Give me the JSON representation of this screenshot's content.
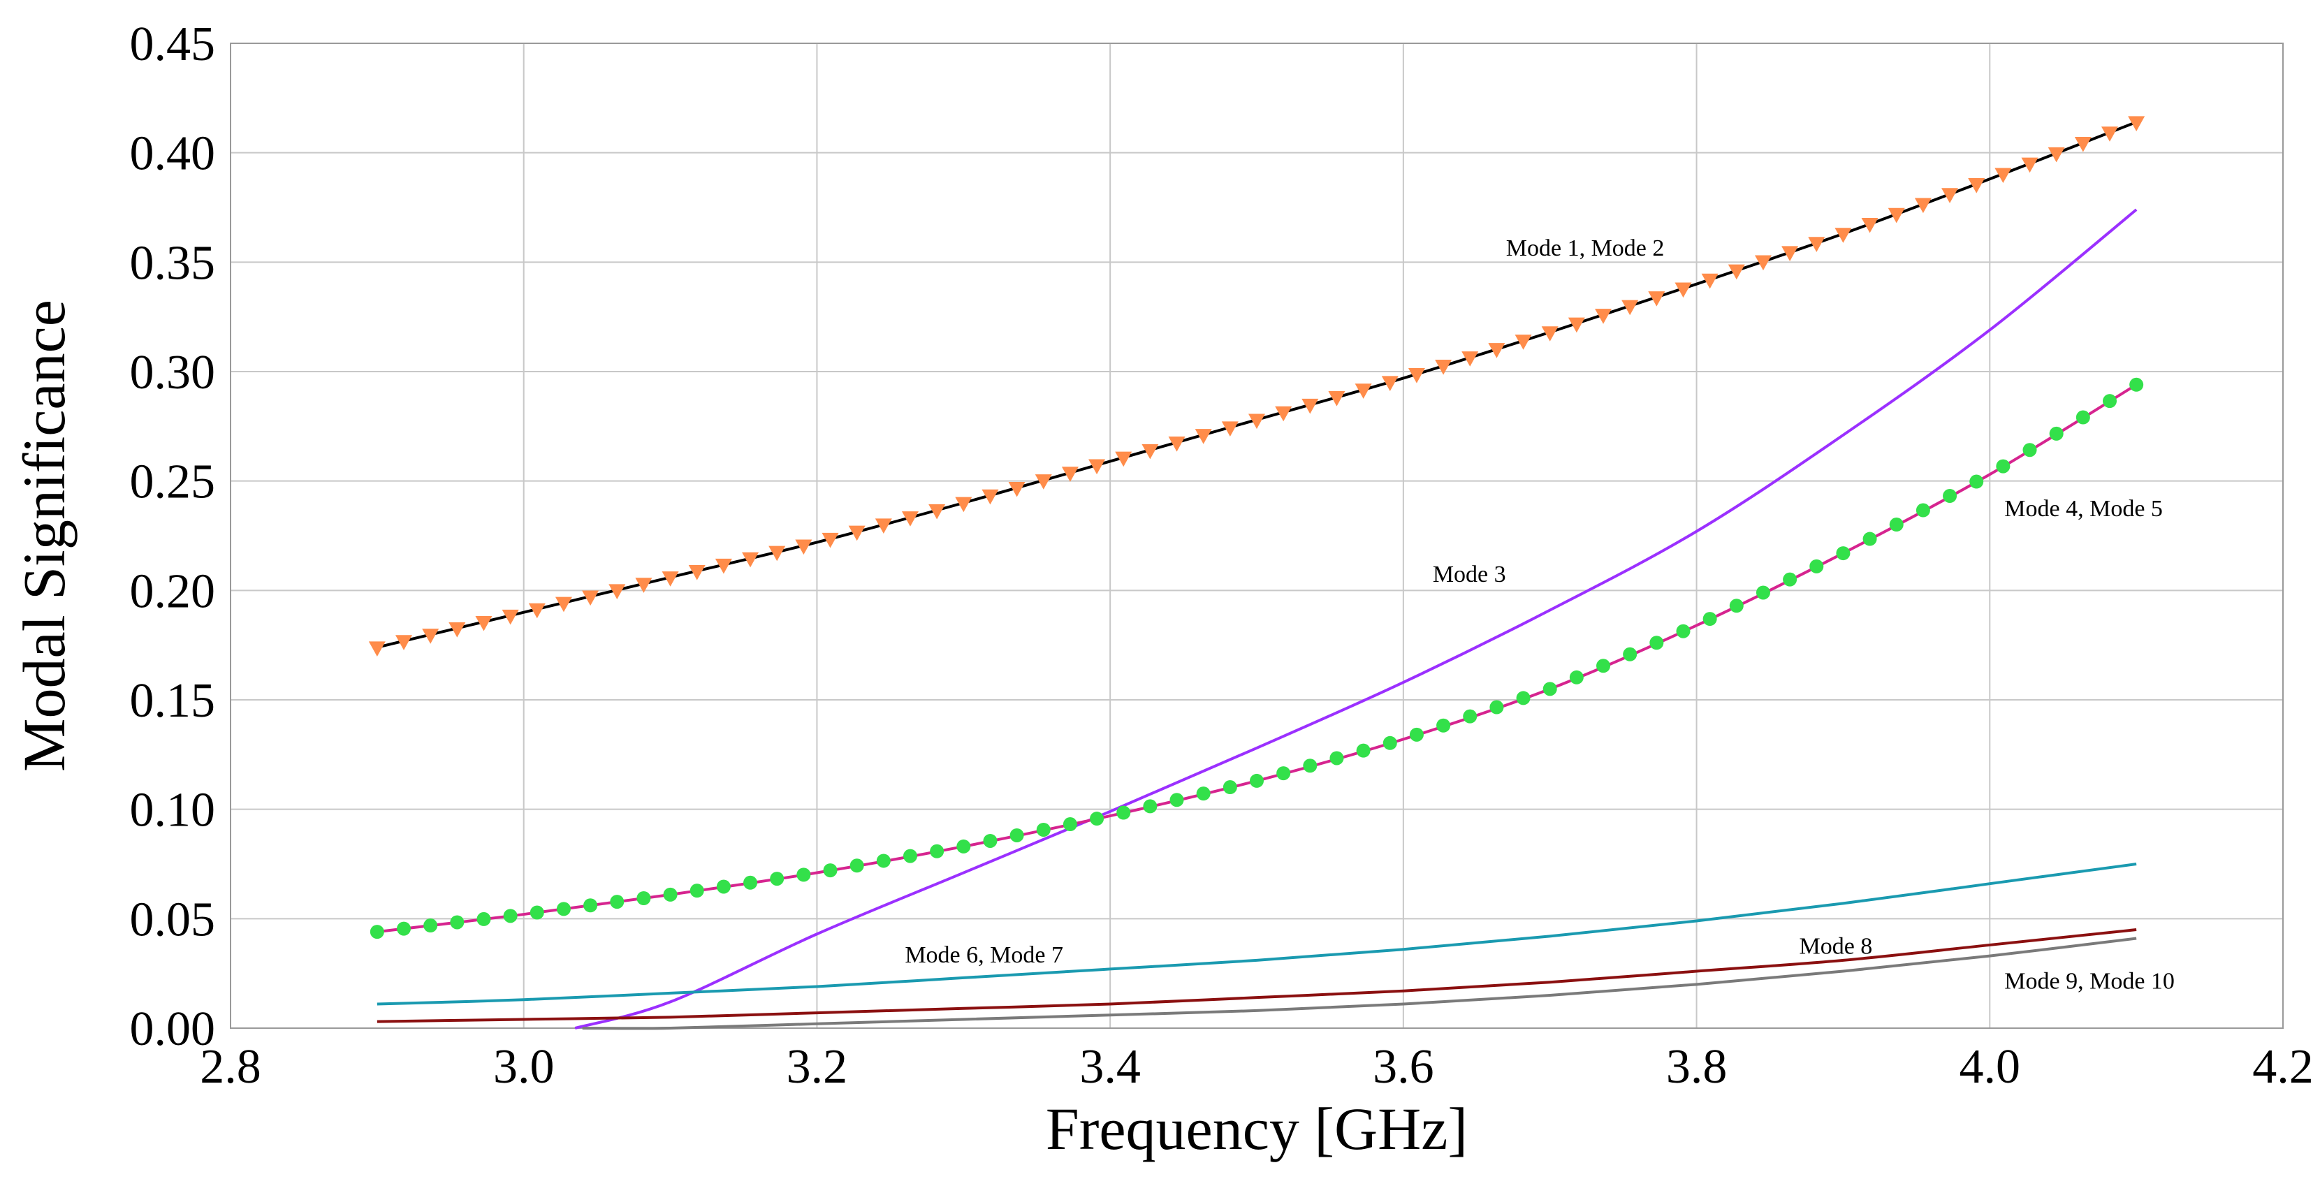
{
  "chart_data": {
    "type": "line",
    "title": "",
    "xlabel": "Frequency [GHz]",
    "ylabel": "Modal Significance",
    "xlim": [
      2.8,
      4.2
    ],
    "ylim": [
      0,
      0.45
    ],
    "grid": true,
    "x_ticks": [
      "2.8",
      "3.0",
      "3.2",
      "3.4",
      "3.6",
      "3.8",
      "4.0",
      "4.2"
    ],
    "y_ticks": [
      "0.00",
      "0.05",
      "0.10",
      "0.15",
      "0.20",
      "0.25",
      "0.30",
      "0.35",
      "0.40",
      "0.45"
    ],
    "x": [
      2.9,
      3.0,
      3.1,
      3.2,
      3.3,
      3.4,
      3.5,
      3.6,
      3.7,
      3.8,
      3.9,
      4.0,
      4.1
    ],
    "series": [
      {
        "name": "Mode 1, Mode 2",
        "color": "#000000",
        "marker": "triangle-down",
        "marker_color": "#ff8c4a",
        "values": [
          0.174,
          0.19,
          0.206,
          0.222,
          0.24,
          0.259,
          0.278,
          0.297,
          0.318,
          0.34,
          0.363,
          0.388,
          0.414
        ]
      },
      {
        "name": "Mode 3",
        "color": "#9b30ff",
        "marker": "none",
        "marker_color": "",
        "values": [
          null,
          null,
          0.012,
          0.043,
          0.071,
          0.099,
          0.128,
          0.158,
          0.191,
          0.227,
          0.271,
          0.319,
          0.374
        ]
      },
      {
        "name": "Mode 4, Mode 5",
        "color": "#d6248f",
        "marker": "circle",
        "marker_color": "#33e04a",
        "values": [
          0.044,
          0.052,
          0.061,
          0.071,
          0.083,
          0.097,
          0.113,
          0.132,
          0.155,
          0.184,
          0.217,
          0.253,
          0.294
        ]
      },
      {
        "name": "Mode 6, Mode 7",
        "color": "#1a9ab0",
        "marker": "none",
        "marker_color": "",
        "values": [
          0.011,
          0.013,
          0.016,
          0.019,
          0.023,
          0.027,
          0.031,
          0.036,
          0.042,
          0.049,
          0.057,
          0.066,
          0.075
        ]
      },
      {
        "name": "Mode 8",
        "color": "#8b1010",
        "marker": "none",
        "marker_color": "",
        "values": [
          0.003,
          0.004,
          0.005,
          0.007,
          0.009,
          0.011,
          0.014,
          0.017,
          0.021,
          0.026,
          0.031,
          0.038,
          0.045
        ]
      },
      {
        "name": "Mode 9, Mode 10",
        "color": "#7a7a7a",
        "marker": "none",
        "marker_color": "",
        "values": [
          null,
          null,
          0.0,
          0.002,
          0.004,
          0.006,
          0.008,
          0.011,
          0.015,
          0.02,
          0.026,
          0.033,
          0.041
        ]
      }
    ],
    "annotations": [
      {
        "text": "Mode 1, Mode 2",
        "x": 3.67,
        "y": 0.353
      },
      {
        "text": "Mode 3",
        "x": 3.62,
        "y": 0.204
      },
      {
        "text": "Mode 4, Mode 5",
        "x": 4.01,
        "y": 0.234
      },
      {
        "text": "Mode 6, Mode 7",
        "x": 3.26,
        "y": 0.03
      },
      {
        "text": "Mode 8",
        "x": 3.87,
        "y": 0.034
      },
      {
        "text": "Mode 9, Mode 10",
        "x": 4.01,
        "y": 0.018
      }
    ]
  }
}
